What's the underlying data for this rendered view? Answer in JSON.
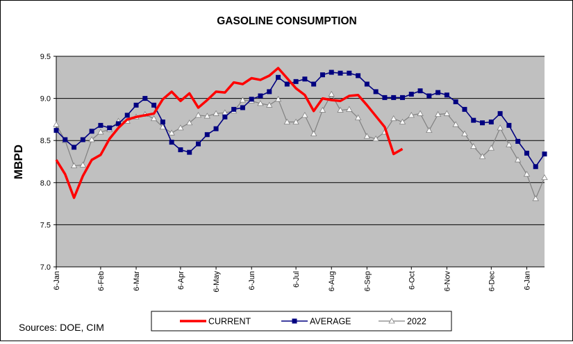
{
  "chart_data": {
    "type": "line",
    "title": "GASOLINE CONSUMPTION",
    "ylabel": "MBPD",
    "xlabel": "",
    "ylim": [
      7.0,
      9.5
    ],
    "yticks": [
      "7.0",
      "7.5",
      "8.0",
      "8.5",
      "9.0",
      "9.5"
    ],
    "ytick_values": [
      7.0,
      7.5,
      8.0,
      8.5,
      9.0,
      9.5
    ],
    "xticks": [
      "6-Jan",
      "6-Feb",
      "6-Mar",
      "6-Apr",
      "6-May",
      "6-Jun",
      "6-Jul",
      "6-Aug",
      "6-Sep",
      "6-Oct",
      "6-Nov",
      "6-Dec",
      "6-Jan"
    ],
    "xtick_week_index": [
      0,
      5,
      9,
      14,
      18,
      22,
      27,
      31,
      35,
      40,
      44,
      49,
      53
    ],
    "x_range_weeks": [
      0,
      55
    ],
    "grid": "horizontal",
    "plot_background": "#c0c0c0",
    "legend_position": "bottom",
    "series": [
      {
        "name": "CURRENT",
        "color": "#ff0000",
        "marker": "none",
        "values": [
          8.27,
          8.1,
          7.82,
          8.08,
          8.27,
          8.33,
          8.52,
          8.65,
          8.75,
          8.78,
          8.8,
          8.82,
          8.99,
          9.08,
          8.97,
          9.06,
          8.89,
          8.98,
          9.08,
          9.07,
          9.19,
          9.17,
          9.24,
          9.22,
          9.27,
          9.36,
          9.24,
          9.12,
          9.04,
          8.85,
          9.0,
          8.98,
          8.97,
          9.03,
          9.04,
          8.92,
          8.79,
          8.66,
          8.34,
          8.4
        ]
      },
      {
        "name": "AVERAGE",
        "color": "#000080",
        "marker": "square",
        "values": [
          8.62,
          8.51,
          8.42,
          8.51,
          8.61,
          8.68,
          8.65,
          8.7,
          8.8,
          8.92,
          9.0,
          8.92,
          8.72,
          8.48,
          8.39,
          8.36,
          8.46,
          8.57,
          8.64,
          8.78,
          8.87,
          8.89,
          8.99,
          9.03,
          9.08,
          9.25,
          9.17,
          9.2,
          9.23,
          9.17,
          9.28,
          9.31,
          9.3,
          9.3,
          9.27,
          9.17,
          9.08,
          9.01,
          9.01,
          9.01,
          9.05,
          9.09,
          9.03,
          9.07,
          9.04,
          8.96,
          8.87,
          8.74,
          8.71,
          8.72,
          8.82,
          8.68,
          8.49,
          8.35,
          8.19,
          8.34
        ]
      },
      {
        "name": "2022",
        "color": "#808080",
        "marker": "triangle",
        "values": [
          8.69,
          8.5,
          8.2,
          8.21,
          8.51,
          8.6,
          8.63,
          8.73,
          8.73,
          8.78,
          8.81,
          8.76,
          8.66,
          8.59,
          8.65,
          8.71,
          8.8,
          8.79,
          8.82,
          8.83,
          8.85,
          8.98,
          8.97,
          8.94,
          8.92,
          8.99,
          8.72,
          8.72,
          8.8,
          8.58,
          8.86,
          9.05,
          8.86,
          8.87,
          8.77,
          8.55,
          8.52,
          8.6,
          8.76,
          8.72,
          8.8,
          8.82,
          8.62,
          8.81,
          8.82,
          8.69,
          8.58,
          8.43,
          8.31,
          8.41,
          8.65,
          8.45,
          8.27,
          8.1,
          7.81,
          8.06
        ]
      }
    ],
    "source_note": "Sources:  DOE, CIM"
  }
}
